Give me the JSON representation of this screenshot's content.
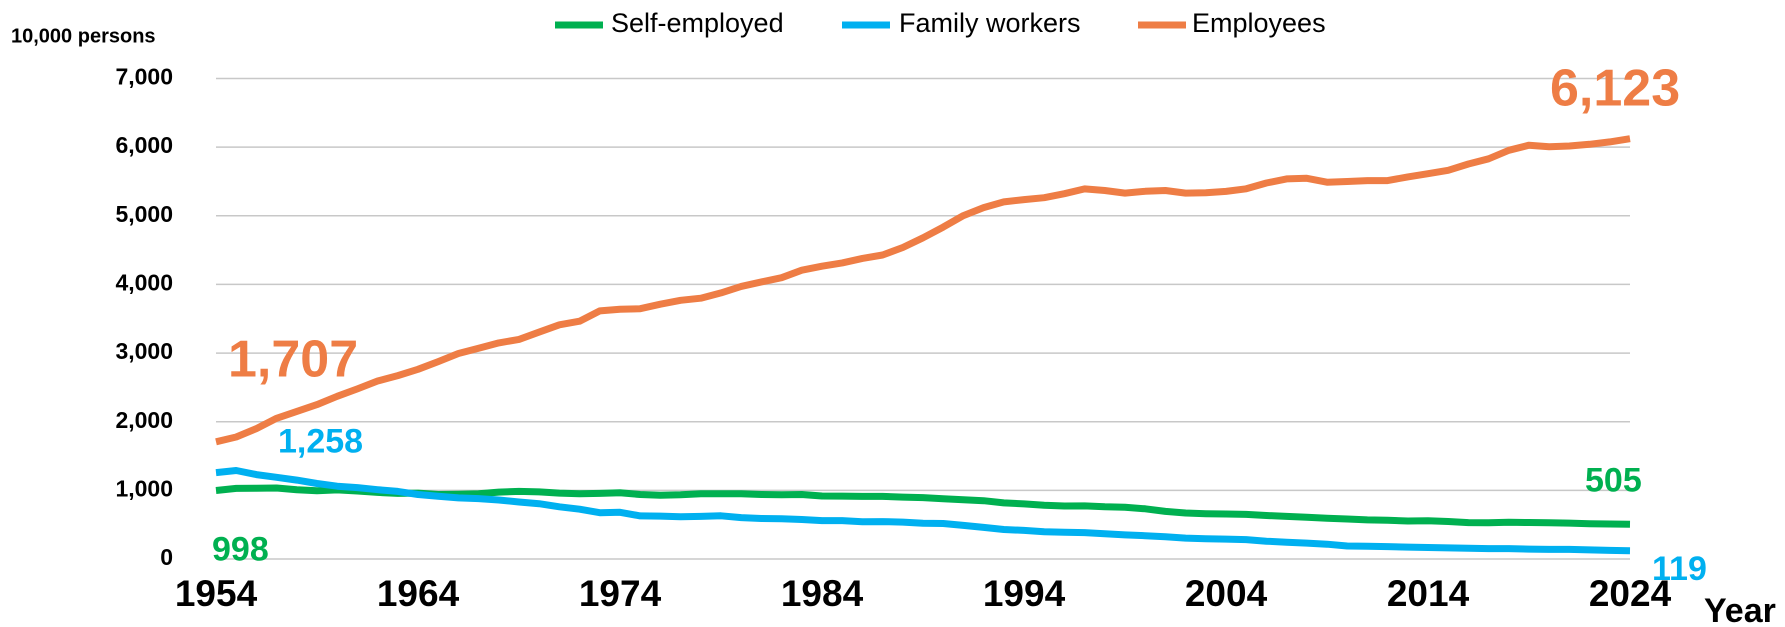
{
  "chart_data": {
    "type": "line",
    "y_label": "10,000 persons",
    "x_label": "Year",
    "x": [
      1954,
      1955,
      1956,
      1957,
      1958,
      1959,
      1960,
      1961,
      1962,
      1963,
      1964,
      1965,
      1966,
      1967,
      1968,
      1969,
      1970,
      1971,
      1972,
      1973,
      1974,
      1975,
      1976,
      1977,
      1978,
      1979,
      1980,
      1981,
      1982,
      1983,
      1984,
      1985,
      1986,
      1987,
      1988,
      1989,
      1990,
      1991,
      1992,
      1993,
      1994,
      1995,
      1996,
      1997,
      1998,
      1999,
      2000,
      2001,
      2002,
      2003,
      2004,
      2005,
      2006,
      2007,
      2008,
      2009,
      2010,
      2011,
      2012,
      2013,
      2014,
      2015,
      2016,
      2017,
      2018,
      2019,
      2020,
      2021,
      2022,
      2023,
      2024
    ],
    "xlim": [
      1954,
      2024
    ],
    "xticks": [
      1954,
      1964,
      1974,
      1984,
      1994,
      2004,
      2014,
      2024
    ],
    "ylim": [
      0,
      7000
    ],
    "yticks": [
      0,
      {
        "value": 1000,
        "label": "1,000"
      },
      {
        "value": 2000,
        "label": "2,000"
      },
      {
        "value": 3000,
        "label": "3,000"
      },
      {
        "value": 4000,
        "label": "4,000"
      },
      {
        "value": 5000,
        "label": "5,000"
      },
      {
        "value": 6000,
        "label": "6,000"
      },
      {
        "value": 7000,
        "label": "7,000"
      }
    ],
    "grid": true,
    "legend": "top",
    "series": [
      {
        "name": "Self-employed",
        "color": "#00b050",
        "values": [
          998,
          1028,
          1030,
          1035,
          1010,
          995,
          1006,
          990,
          970,
          955,
          960,
          939,
          942,
          950,
          975,
          985,
          977,
          960,
          950,
          956,
          965,
          939,
          930,
          936,
          950,
          952,
          951,
          940,
          936,
          940,
          918,
          916,
          912,
          912,
          902,
          895,
          878,
          864,
          850,
          817,
          802,
          784,
          772,
          773,
          761,
          754,
          731,
          693,
          670,
          660,
          656,
          650,
          633,
          621,
          608,
          595,
          582,
          570,
          564,
          554,
          556,
          546,
          530,
          529,
          535,
          532,
          527,
          523,
          514,
          510,
          505
        ],
        "value_labels": [
          "998",
          null,
          null,
          null,
          null,
          null,
          null,
          null,
          null,
          null,
          null,
          null,
          null,
          null,
          null,
          null,
          null,
          null,
          null,
          null,
          null,
          null,
          null,
          null,
          null,
          null,
          null,
          null,
          null,
          null,
          null,
          null,
          null,
          null,
          null,
          null,
          null,
          null,
          null,
          null,
          null,
          null,
          null,
          null,
          null,
          null,
          null,
          null,
          null,
          null,
          null,
          null,
          null,
          null,
          null,
          null,
          null,
          null,
          null,
          null,
          null,
          null,
          null,
          null,
          null,
          null,
          null,
          null,
          null,
          null,
          "505"
        ]
      },
      {
        "name": "Family workers",
        "color": "#00b0f0",
        "values": [
          1258,
          1290,
          1230,
          1190,
          1150,
          1100,
          1060,
          1040,
          1010,
          985,
          940,
          915,
          890,
          880,
          860,
          830,
          805,
          760,
          725,
          675,
          680,
          628,
          625,
          615,
          620,
          630,
          603,
          590,
          585,
          575,
          560,
          559,
          543,
          545,
          537,
          520,
          517,
          490,
          460,
          430,
          417,
          397,
          390,
          385,
          367,
          351,
          340,
          325,
          305,
          296,
          290,
          282,
          260,
          245,
          232,
          215,
          190,
          185,
          180,
          174,
          168,
          162,
          157,
          151,
          151,
          144,
          140,
          140,
          133,
          126,
          119
        ],
        "value_labels": [
          "1,258",
          null,
          null,
          null,
          null,
          null,
          null,
          null,
          null,
          null,
          null,
          null,
          null,
          null,
          null,
          null,
          null,
          null,
          null,
          null,
          null,
          null,
          null,
          null,
          null,
          null,
          null,
          null,
          null,
          null,
          null,
          null,
          null,
          null,
          null,
          null,
          null,
          null,
          null,
          null,
          null,
          null,
          null,
          null,
          null,
          null,
          null,
          null,
          null,
          null,
          null,
          null,
          null,
          null,
          null,
          null,
          null,
          null,
          null,
          null,
          null,
          null,
          null,
          null,
          null,
          null,
          null,
          null,
          null,
          null,
          "119"
        ]
      },
      {
        "name": "Employees",
        "color": "#ee7d45",
        "values": [
          1707,
          1778,
          1900,
          2050,
          2150,
          2250,
          2370,
          2478,
          2593,
          2672,
          2763,
          2876,
          2994,
          3071,
          3148,
          3199,
          3306,
          3412,
          3465,
          3615,
          3637,
          3646,
          3712,
          3769,
          3799,
          3876,
          3971,
          4037,
          4098,
          4208,
          4265,
          4313,
          4379,
          4428,
          4538,
          4679,
          4835,
          5002,
          5119,
          5202,
          5236,
          5263,
          5322,
          5391,
          5368,
          5331,
          5356,
          5369,
          5331,
          5335,
          5355,
          5393,
          5478,
          5537,
          5546,
          5489,
          5500,
          5512,
          5513,
          5567,
          5613,
          5663,
          5755,
          5830,
          5954,
          6028,
          6005,
          6016,
          6041,
          6076,
          6123
        ],
        "value_labels": [
          "1,707",
          null,
          null,
          null,
          null,
          null,
          null,
          null,
          null,
          null,
          null,
          null,
          null,
          null,
          null,
          null,
          null,
          null,
          null,
          null,
          null,
          null,
          null,
          null,
          null,
          null,
          null,
          null,
          null,
          null,
          null,
          null,
          null,
          null,
          null,
          null,
          null,
          null,
          null,
          null,
          null,
          null,
          null,
          null,
          null,
          null,
          null,
          null,
          null,
          null,
          null,
          null,
          null,
          null,
          null,
          null,
          null,
          null,
          null,
          null,
          null,
          null,
          null,
          null,
          null,
          null,
          null,
          null,
          null,
          null,
          "6,123"
        ]
      }
    ]
  }
}
